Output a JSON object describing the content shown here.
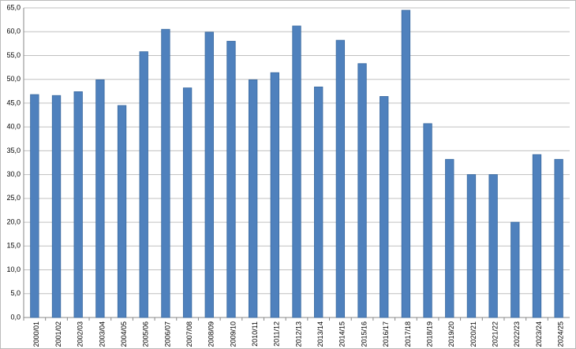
{
  "chart_data": {
    "type": "bar",
    "categories": [
      "2000/01",
      "2001/02",
      "2002/03",
      "2003/04",
      "2004/05",
      "2005/06",
      "2006/07",
      "2007/08",
      "2008/09",
      "2009/10",
      "2010/11",
      "2011/12",
      "2012/13",
      "2013/14",
      "2014/15",
      "2015/16",
      "2016/17",
      "2017/18",
      "2018/19",
      "2019/20",
      "2020/21",
      "2021/22",
      "2022/23",
      "2023/24",
      "2024/25"
    ],
    "values": [
      46.8,
      46.6,
      47.4,
      49.9,
      44.5,
      55.8,
      60.5,
      48.2,
      59.9,
      58.0,
      49.9,
      51.4,
      61.2,
      48.4,
      58.2,
      53.3,
      46.4,
      64.5,
      40.7,
      33.2,
      30.0,
      30.0,
      20.0,
      34.2,
      33.2
    ],
    "color": "#4f81bd",
    "ylim": [
      0,
      65
    ],
    "yticks": [
      {
        "value": 0,
        "label": "0,0"
      },
      {
        "value": 5,
        "label": "5,0"
      },
      {
        "value": 10,
        "label": "10,0"
      },
      {
        "value": 15,
        "label": "15,0"
      },
      {
        "value": 20,
        "label": "20,0"
      },
      {
        "value": 25,
        "label": "25,0"
      },
      {
        "value": 30,
        "label": "30,0"
      },
      {
        "value": 35,
        "label": "35,0"
      },
      {
        "value": 40,
        "label": "40,0"
      },
      {
        "value": 45,
        "label": "45,0"
      },
      {
        "value": 50,
        "label": "50,0"
      },
      {
        "value": 55,
        "label": "55,0"
      },
      {
        "value": 60,
        "label": "60,0"
      },
      {
        "value": 65,
        "label": "65,0"
      }
    ],
    "grid": true
  }
}
